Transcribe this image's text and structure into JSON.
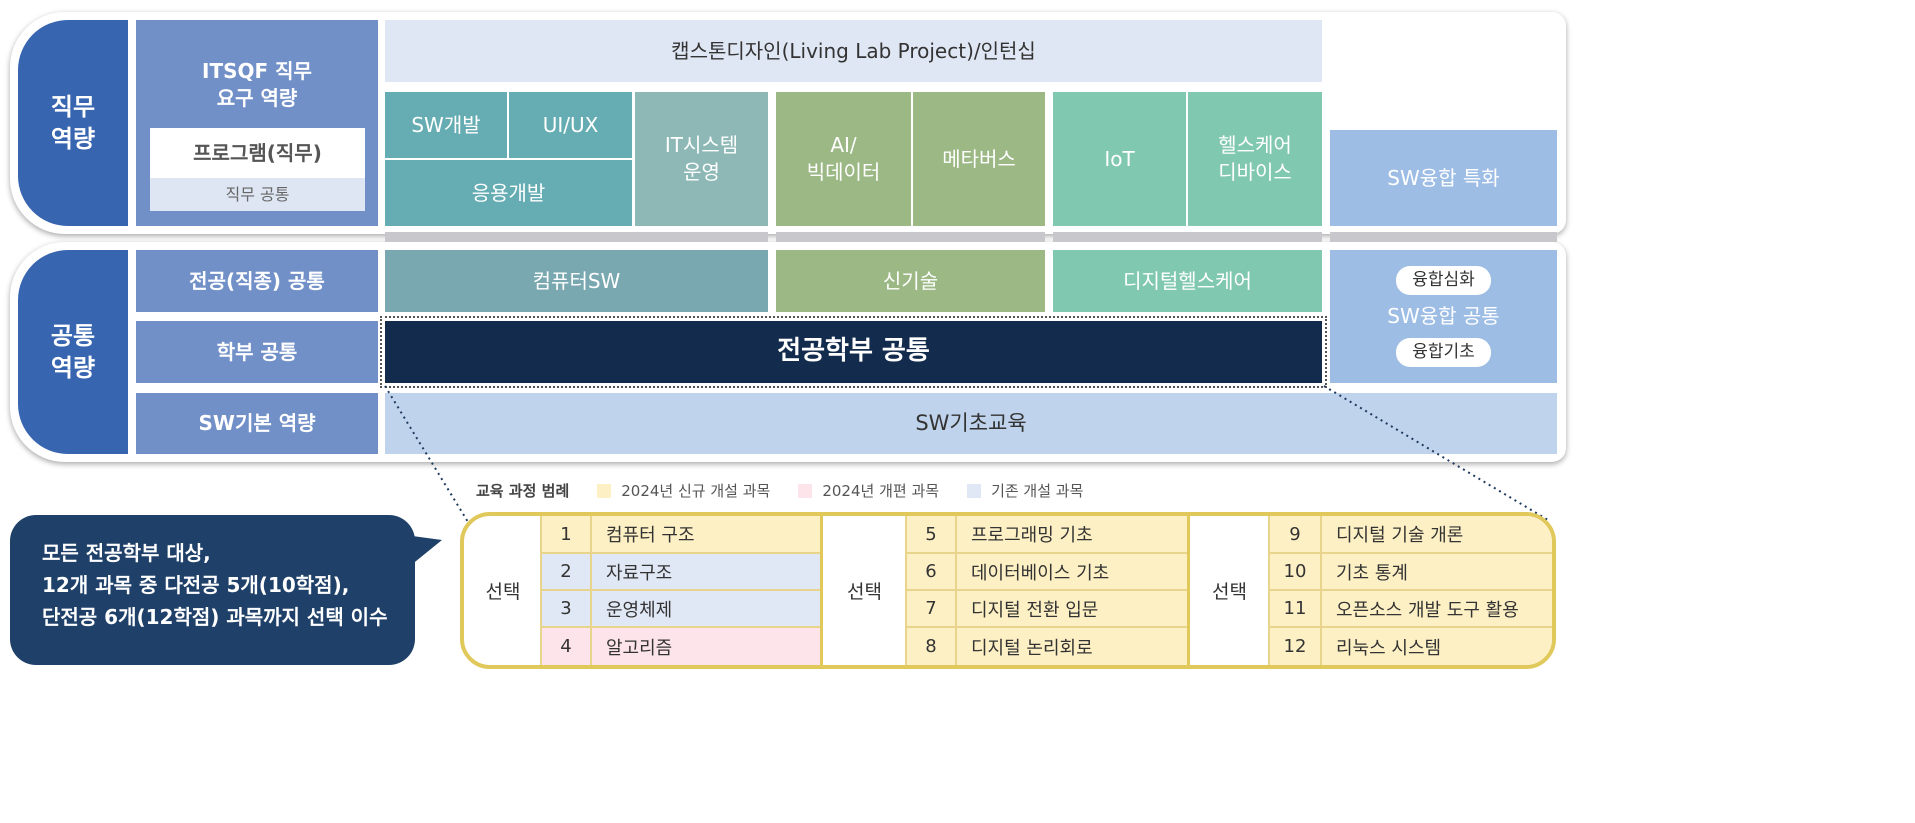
{
  "top": {
    "side_label": "직무\n역량",
    "itsqf": "ITSQF 직무\n요구 역량",
    "program": "프로그램(직무)",
    "job_common": "직무 공통",
    "capstone": "캡스톤디자인(Living Lab Project)/인턴십",
    "tracks": {
      "sw_dev": "SW개발",
      "uiux": "UI/UX",
      "app_dev": "응용개발",
      "it_ops": "IT시스템\n운영",
      "ai_bigdata": "AI/\n빅데이터",
      "metaverse": "메타버스",
      "iot": "IoT",
      "health_device": "헬스케어\n디바이스",
      "sw_convergence_special": "SW융합 특화"
    }
  },
  "bottom": {
    "side_label": "공통\n역량",
    "major_common": "전공(직종) 공통",
    "dept_common": "학부 공통",
    "sw_basic": "SW기본 역량",
    "computer_sw": "컴퓨터SW",
    "new_tech": "신기술",
    "digital_health": "디지털헬스케어",
    "sw_conv_common": "SW융합 공통",
    "conv_advanced": "융합심화",
    "conv_basic": "융합기초",
    "school_common": "전공학부 공통",
    "sw_basic_edu": "SW기초교육"
  },
  "legend": {
    "title": "교육 과정 범례",
    "items": [
      {
        "label": "2024년 신규 개설 과목",
        "color": "#fdf0c4"
      },
      {
        "label": "2024년 개편 과목",
        "color": "#fce4ea"
      },
      {
        "label": "기존 개설 과목",
        "color": "#e1e8f5"
      }
    ]
  },
  "callout": {
    "line1": "모든 전공학부 대상,",
    "line2": "12개 과목 중 다전공 5개(10학점),",
    "line3": "단전공 6개(12학점) 과목까지 선택 이수"
  },
  "table": {
    "groups": [
      {
        "label": "선택",
        "courses": [
          {
            "no": "1",
            "name": "컴퓨터 구조",
            "type": "new"
          },
          {
            "no": "2",
            "name": "자료구조",
            "type": "existing"
          },
          {
            "no": "3",
            "name": "운영체제",
            "type": "existing"
          },
          {
            "no": "4",
            "name": "알고리즘",
            "type": "revised"
          }
        ]
      },
      {
        "label": "선택",
        "courses": [
          {
            "no": "5",
            "name": "프로그래밍 기초",
            "type": "new"
          },
          {
            "no": "6",
            "name": "데이터베이스 기초",
            "type": "new"
          },
          {
            "no": "7",
            "name": "디지털 전환 입문",
            "type": "new"
          },
          {
            "no": "8",
            "name": "디지털 논리회로",
            "type": "new"
          }
        ]
      },
      {
        "label": "선택",
        "courses": [
          {
            "no": "9",
            "name": "디지털 기술 개론",
            "type": "new"
          },
          {
            "no": "10",
            "name": "기초 통계",
            "type": "new"
          },
          {
            "no": "11",
            "name": "오픈소스 개발 도구 활용",
            "type": "new"
          },
          {
            "no": "12",
            "name": "리눅스 시스템",
            "type": "new"
          }
        ]
      }
    ]
  }
}
